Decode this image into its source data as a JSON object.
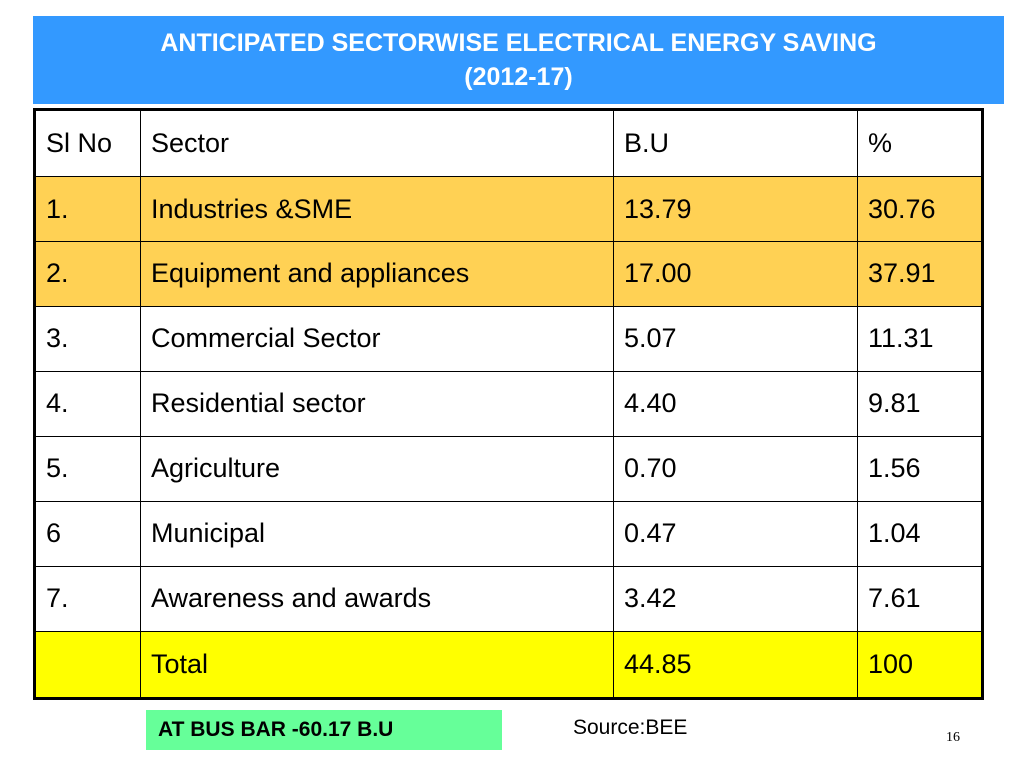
{
  "slide": {
    "title_line1": "ANTICIPATED SECTORWISE ELECTRICAL ENERGY SAVING",
    "title_line2": "(2012-17)",
    "colors": {
      "title_bg": "#3399ff",
      "highlight_rows": "#ffd154",
      "total_row": "#ffff00",
      "busbar_bg": "#66ff99"
    }
  },
  "table": {
    "headers": [
      "Sl No",
      "Sector",
      "B.U",
      "%"
    ],
    "rows": [
      [
        "1.",
        "Industries &SME",
        "13.79",
        "30.76"
      ],
      [
        "2.",
        "Equipment and appliances",
        "17.00",
        "37.91"
      ],
      [
        "3.",
        "Commercial Sector",
        "5.07",
        "11.31"
      ],
      [
        "4.",
        "Residential sector",
        "4.40",
        "9.81"
      ],
      [
        "5.",
        "Agriculture",
        "0.70",
        "1.56"
      ],
      [
        "6",
        "Municipal",
        "0.47",
        "1.04"
      ],
      [
        "7.",
        "Awareness and awards",
        "3.42",
        "7.61"
      ]
    ],
    "total": [
      "",
      "Total",
      "44.85",
      "100"
    ]
  },
  "footer": {
    "busbar": "AT BUS BAR -60.17 B.U",
    "source": "Source:BEE",
    "page_number": "16"
  }
}
